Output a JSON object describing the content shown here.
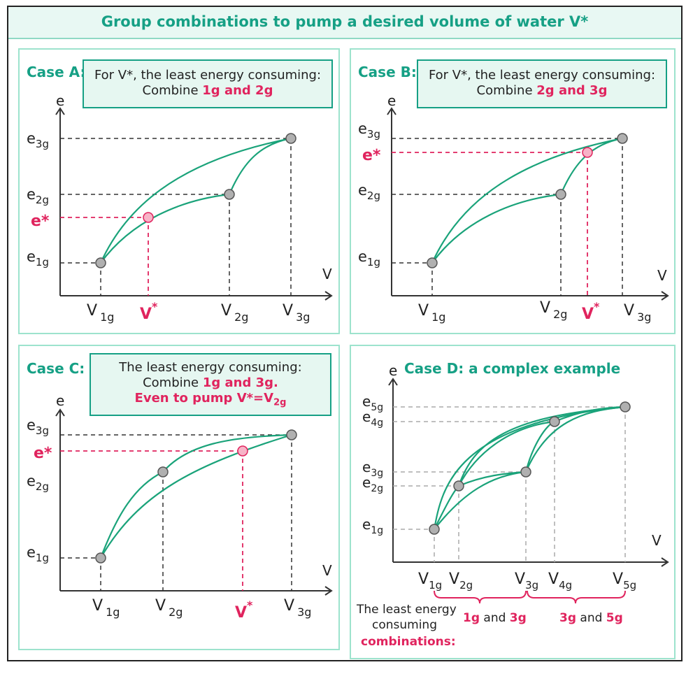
{
  "title": "Group combinations to pump a desired volume of water V*",
  "colors": {
    "curve": "#1aa37a",
    "accent": "#e0245e",
    "point": "#b0b0b0",
    "frame": "#9de3cd",
    "title": "#16a085"
  },
  "axis": {
    "e": "e",
    "v": "V",
    "V": "V"
  },
  "labels": {
    "e1": "e",
    "e2": "e",
    "e3": "e",
    "e4": "e",
    "e5": "e",
    "estar": "e*",
    "sub1": "1g",
    "sub2": "2g",
    "sub3": "3g",
    "sub4": "4g",
    "sub5": "5g",
    "vstar": "V",
    "star": "*"
  },
  "caseA": {
    "label": "Case A:",
    "callout_line1": "For V*, the least energy consuming:",
    "callout_combine": "Combine ",
    "callout_highlight": "1g and 2g"
  },
  "caseB": {
    "label": "Case B:",
    "callout_line1": "For V*, the least energy consuming:",
    "callout_combine": "Combine ",
    "callout_highlight": "2g and 3g"
  },
  "caseC": {
    "label": "Case C:",
    "callout_line1": "The least energy consuming:",
    "callout_combine": "Combine ",
    "callout_highlight": "1g and 3g.",
    "callout_line3": "Even to pump V*=V",
    "callout_line3_sub": "2g"
  },
  "caseD": {
    "label": "Case D: a complex example",
    "footer_line1": "The least energy",
    "footer_line2": "consuming",
    "footer_line3": "combinations:",
    "group1_a": "1g",
    "group1_and": " and ",
    "group1_b": "3g",
    "group2_a": "3g",
    "group2_and": " and ",
    "group2_b": "5g"
  }
}
